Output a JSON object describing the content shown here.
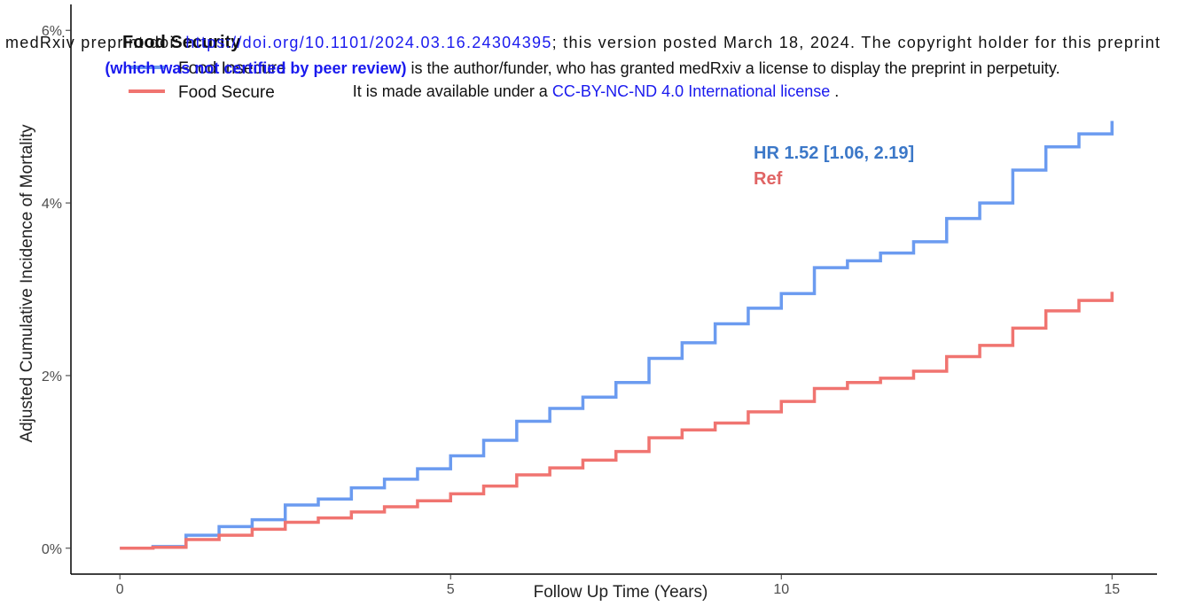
{
  "header": {
    "line1": [
      "medRxiv preprint doi: ",
      "https://doi.org/10.1101/2024.03.16.24304395",
      "; this version posted March 18, 2024. The copyright holder for this preprint"
    ],
    "line2": [
      "(which was not certified by peer review)",
      " is the author/funder, who has granted medRxiv a license to display the preprint in perpetuity."
    ],
    "line3": [
      "It is made available under a ",
      "CC-BY-NC-ND 4.0 International license",
      " ."
    ]
  },
  "chart_data": {
    "type": "step",
    "x_label": "Follow Up Time (Years)",
    "y_label": "Adjusted Cumulative Incidence of Mortality",
    "legend_title": "Food Security",
    "legend": "top-left",
    "grid": false,
    "annotations": [
      {
        "text": "HR 1.52 [1.06, 2.19]",
        "color": "#3c78c8"
      },
      {
        "text": "Ref",
        "color": "#e06464"
      }
    ],
    "xlim": [
      -0.74,
      15.68
    ],
    "ylim": [
      -0.3,
      6.3
    ],
    "xticks": [
      0,
      5,
      10,
      15
    ],
    "yticks": [
      {
        "value": 0,
        "label": "0%"
      },
      {
        "value": 2,
        "label": "2%"
      },
      {
        "value": 4,
        "label": "4%"
      },
      {
        "value": 6,
        "label": "6%"
      }
    ],
    "x": [
      0,
      0.5,
      1,
      1.5,
      2,
      2.5,
      3,
      3.5,
      4,
      4.5,
      5,
      5.5,
      6,
      6.5,
      7,
      7.5,
      8,
      8.5,
      9,
      9.5,
      10,
      10.5,
      11,
      11.5,
      12,
      12.5,
      13,
      13.5,
      14,
      14.5,
      15
    ],
    "series": [
      {
        "name": "Food Insecure",
        "color": "#6b9bf0",
        "values": [
          0,
          0.02,
          0.15,
          0.25,
          0.33,
          0.5,
          0.57,
          0.7,
          0.8,
          0.92,
          1.07,
          1.25,
          1.47,
          1.62,
          1.75,
          1.92,
          2.2,
          2.38,
          2.6,
          2.78,
          2.95,
          3.25,
          3.33,
          3.42,
          3.55,
          3.82,
          4.0,
          4.38,
          4.65,
          4.8,
          4.95
        ]
      },
      {
        "name": "Food Secure",
        "color": "#f07470",
        "values": [
          0,
          0.01,
          0.1,
          0.15,
          0.22,
          0.3,
          0.35,
          0.42,
          0.48,
          0.55,
          0.63,
          0.72,
          0.85,
          0.93,
          1.02,
          1.12,
          1.28,
          1.37,
          1.45,
          1.58,
          1.7,
          1.85,
          1.92,
          1.97,
          2.05,
          2.22,
          2.35,
          2.55,
          2.75,
          2.87,
          2.97
        ]
      }
    ]
  }
}
